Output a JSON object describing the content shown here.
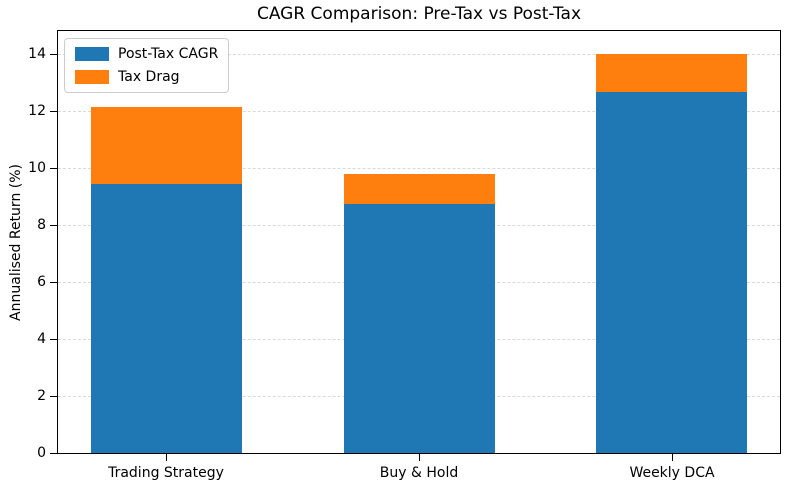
{
  "title": "CAGR Comparison: Pre-Tax vs Post-Tax",
  "chart_data": {
    "type": "bar",
    "stacked": true,
    "title": "CAGR Comparison: Pre-Tax vs Post-Tax",
    "xlabel": "",
    "ylabel": "Annualised Return (%)",
    "categories": [
      "Trading Strategy",
      "Buy & Hold",
      "Weekly DCA"
    ],
    "series": [
      {
        "name": "Post-Tax CAGR",
        "color": "#1f77b4",
        "values": [
          9.45,
          8.75,
          12.65
        ]
      },
      {
        "name": "Tax Drag",
        "color": "#ff7f0e",
        "values": [
          2.7,
          1.05,
          1.35
        ]
      }
    ],
    "stacked_totals_pre_tax": [
      12.15,
      9.8,
      14.0
    ],
    "ylim": [
      0,
      14.8
    ],
    "yticks": [
      0,
      2,
      4,
      6,
      8,
      10,
      12,
      14
    ],
    "grid": "horizontal-dashed",
    "grid_color": "#d9d9d9",
    "legend_position": "upper-left",
    "axis_color": "#000000",
    "background_color": "#ffffff"
  }
}
